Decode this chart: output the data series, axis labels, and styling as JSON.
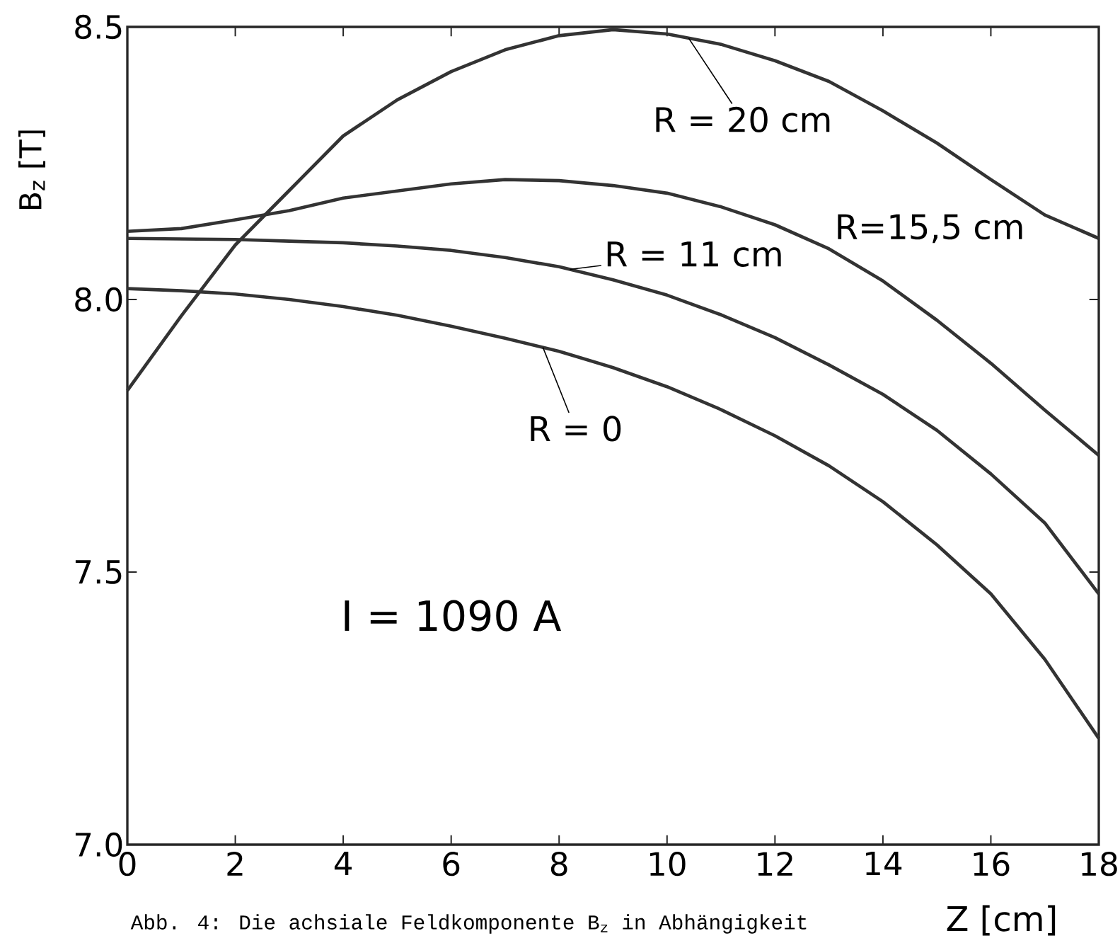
{
  "chart_data": {
    "type": "line",
    "xlabel": "Z [cm]",
    "ylabel": "B$_{z}$ [T]",
    "annotations": [
      "I = 1090 A",
      "Abb. 4: Die achsiale Feldkomponente B$_{z}$ in Abhängigkeit"
    ],
    "xlim": [
      0,
      18
    ],
    "ylim": [
      7.0,
      8.5
    ],
    "xticks": [
      0,
      2,
      4,
      6,
      8,
      10,
      12,
      14,
      16,
      18
    ],
    "yticks": [
      {
        "value": 7.0,
        "label": "7.0"
      },
      {
        "value": 7.5,
        "label": "7.5"
      },
      {
        "value": 8.0,
        "label": "8.0"
      },
      {
        "value": 8.5,
        "label": "8.5"
      }
    ],
    "x": [
      0,
      1,
      2,
      3,
      4,
      5,
      6,
      7,
      8,
      9,
      10,
      11,
      12,
      13,
      14,
      15,
      16,
      17,
      18
    ],
    "series": [
      {
        "name": "R = 20 cm",
        "color": "#333333",
        "values": [
          7.833,
          7.97,
          8.1,
          8.2,
          8.3,
          8.366,
          8.418,
          8.458,
          8.484,
          8.495,
          8.487,
          8.468,
          8.438,
          8.4,
          8.346,
          8.287,
          8.22,
          8.155,
          8.112
        ]
      },
      {
        "name": "R=15,5 cm",
        "color": "#333333",
        "values": [
          8.125,
          8.13,
          8.146,
          8.163,
          8.186,
          8.199,
          8.212,
          8.22,
          8.218,
          8.209,
          8.195,
          8.17,
          8.137,
          8.093,
          8.034,
          7.962,
          7.883,
          7.797,
          7.714
        ]
      },
      {
        "name": "R = 11 cm",
        "color": "#333333",
        "values": [
          8.112,
          8.111,
          8.11,
          8.107,
          8.104,
          8.098,
          8.09,
          8.077,
          8.06,
          8.036,
          8.008,
          7.972,
          7.93,
          7.88,
          7.826,
          7.76,
          7.68,
          7.59,
          7.46
        ]
      },
      {
        "name": "R = 0",
        "color": "#333333",
        "values": [
          8.02,
          8.016,
          8.01,
          8.0,
          7.987,
          7.971,
          7.951,
          7.929,
          7.905,
          7.875,
          7.84,
          7.798,
          7.75,
          7.695,
          7.629,
          7.55,
          7.46,
          7.34,
          7.195
        ]
      }
    ]
  }
}
